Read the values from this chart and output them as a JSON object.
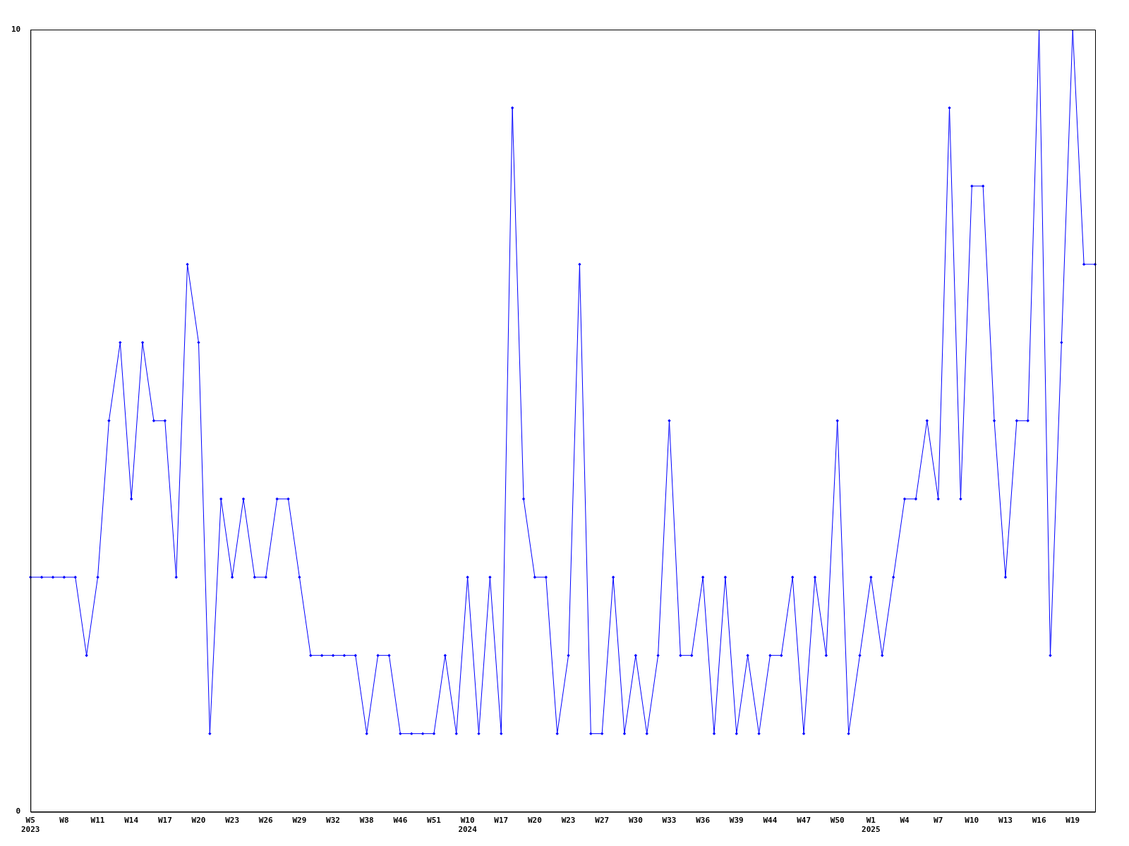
{
  "chart_data": {
    "type": "line",
    "categories": [
      "W5\n2023",
      null,
      null,
      "W8",
      null,
      null,
      "W11",
      null,
      null,
      "W14",
      null,
      null,
      "W17",
      null,
      null,
      "W20",
      null,
      null,
      "W23",
      null,
      null,
      "W26",
      null,
      null,
      "W29",
      null,
      null,
      "W32",
      null,
      null,
      "W38",
      null,
      null,
      "W46",
      null,
      null,
      "W51",
      null,
      null,
      "W10\n2024",
      null,
      null,
      "W17",
      null,
      null,
      "W20",
      null,
      null,
      "W23",
      null,
      null,
      "W27",
      null,
      null,
      "W30",
      null,
      null,
      "W33",
      null,
      null,
      "W36",
      null,
      null,
      "W39",
      null,
      null,
      "W44",
      null,
      null,
      "W47",
      null,
      null,
      "W50",
      null,
      null,
      "W1\n2025",
      null,
      null,
      "W4",
      null,
      null,
      "W7",
      null,
      null,
      "W10",
      null,
      null,
      "W13",
      null,
      null,
      "W16",
      null,
      null,
      "W19",
      null,
      null
    ],
    "series": [
      {
        "color": "#0000ff",
        "values": [
          3,
          3,
          3,
          3,
          3,
          2,
          3,
          5,
          6,
          4,
          6,
          5,
          5,
          3,
          7,
          6,
          1,
          4,
          3,
          4,
          3,
          3,
          4,
          4,
          3,
          2,
          2,
          2,
          2,
          2,
          1,
          2,
          2,
          1,
          1,
          1,
          1,
          2,
          1,
          3,
          1,
          3,
          1,
          9,
          4,
          3,
          3,
          1,
          2,
          7,
          1,
          1,
          3,
          1,
          2,
          1,
          2,
          5,
          2,
          2,
          3,
          1,
          3,
          1,
          2,
          1,
          2,
          2,
          3,
          1,
          3,
          2,
          5,
          1,
          2,
          3,
          2,
          3,
          4,
          4,
          5,
          4,
          9,
          4,
          8,
          8,
          5,
          3,
          5,
          5,
          10,
          2,
          6,
          10,
          7,
          7
        ]
      }
    ],
    "ylim": [
      0,
      10
    ],
    "yticks": [
      0,
      10
    ],
    "grid": false,
    "legend": false,
    "marker": "diamond",
    "line_style": "solid"
  }
}
